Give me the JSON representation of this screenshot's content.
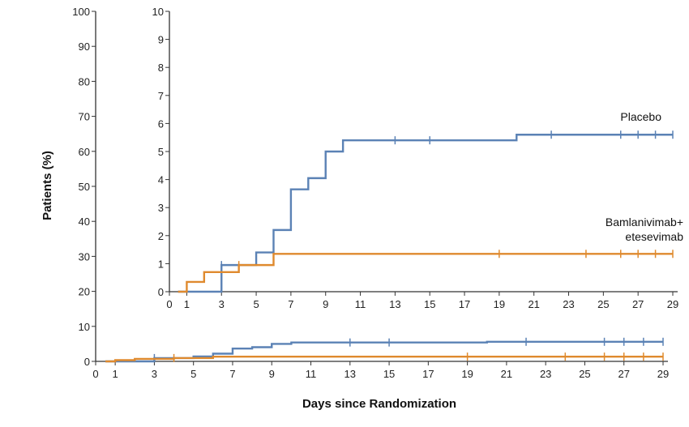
{
  "chart_data": {
    "type": "line",
    "step": true,
    "xlabel": "Days since Randomization",
    "ylabel": "Patients (%)",
    "series": [
      {
        "name": "Placebo",
        "color": "#5b82b5",
        "x": [
          0.5,
          3,
          5,
          6,
          7,
          8,
          9,
          10,
          20,
          29
        ],
        "y": [
          0,
          0.95,
          1.4,
          2.2,
          3.65,
          4.05,
          5.0,
          5.4,
          5.6,
          5.6
        ],
        "censor_x": [
          3,
          13,
          15,
          22,
          26,
          27,
          28,
          29
        ]
      },
      {
        "name": "Bamlanivimab+\netesevimab",
        "color": "#df8a2e",
        "x": [
          0.5,
          1,
          2,
          4,
          6,
          29
        ],
        "y": [
          0,
          0.35,
          0.7,
          0.95,
          1.35,
          1.35
        ],
        "censor_x": [
          4,
          19,
          24,
          26,
          27,
          28,
          29
        ]
      }
    ],
    "main_panel": {
      "xlim": [
        0,
        29
      ],
      "ylim": [
        0,
        100
      ],
      "xticks": [
        "0",
        "1",
        "3",
        "5",
        "7",
        "9",
        "11",
        "13",
        "15",
        "17",
        "19",
        "21",
        "23",
        "25",
        "27",
        "29"
      ],
      "yticks": [
        "0",
        "10",
        "20",
        "30",
        "40",
        "50",
        "60",
        "70",
        "80",
        "90",
        "100"
      ]
    },
    "inset_panel": {
      "xlim": [
        0,
        29
      ],
      "ylim": [
        0,
        10
      ],
      "xticks": [
        "0",
        "1",
        "3",
        "5",
        "7",
        "9",
        "11",
        "13",
        "15",
        "17",
        "19",
        "21",
        "23",
        "25",
        "27",
        "29"
      ],
      "yticks": [
        "0",
        "1",
        "2",
        "3",
        "4",
        "5",
        "6",
        "7",
        "8",
        "9",
        "10"
      ]
    },
    "grid": false,
    "legend": "none"
  }
}
